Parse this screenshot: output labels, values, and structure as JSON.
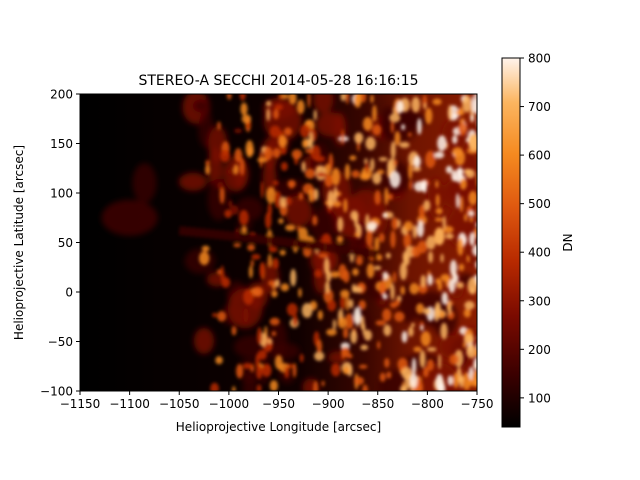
{
  "chart_data": {
    "type": "heatmap",
    "title": "STEREO-A SECCHI 2014-05-28 16:16:15",
    "xlabel": "Helioprojective Longitude [arcsec]",
    "ylabel": "Helioprojective Latitude [arcsec]",
    "xlim": [
      -1150,
      -750
    ],
    "ylim": [
      -100,
      200
    ],
    "x_ticks": [
      -1150,
      -1100,
      -1050,
      -1000,
      -950,
      -900,
      -850,
      -800,
      -750
    ],
    "x_tick_labels": [
      "−1150",
      "−1100",
      "−1050",
      "−1000",
      "−950",
      "−900",
      "−850",
      "−800",
      "−750"
    ],
    "y_ticks": [
      -100,
      -50,
      0,
      50,
      100,
      150,
      200
    ],
    "y_tick_labels": [
      "−100",
      "−50",
      "0",
      "50",
      "100",
      "150",
      "200"
    ],
    "colorbar": {
      "label": "DN",
      "range": [
        40,
        800
      ],
      "ticks": [
        100,
        200,
        300,
        400,
        500,
        600,
        700,
        800
      ],
      "tick_labels": [
        "100",
        "200",
        "300",
        "400",
        "500",
        "600",
        "700",
        "800"
      ],
      "colormap": "sdoaia304",
      "colormap_stops": [
        "#000000",
        "#3a0000",
        "#7a0a00",
        "#b82a00",
        "#e05a10",
        "#f58a20",
        "#fbb560",
        "#fff4ec"
      ]
    },
    "limb_longitude_approx": -1040,
    "grid": false
  }
}
